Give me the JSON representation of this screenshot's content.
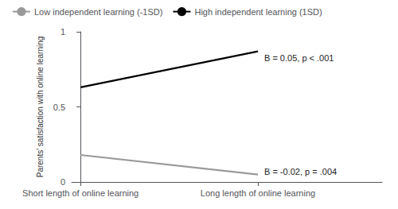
{
  "chart_data": {
    "type": "line",
    "x": [
      0,
      1
    ],
    "xlim": [
      -0.05,
      1.7
    ],
    "xticks": [
      {
        "value": 0,
        "label": "Short length of online learning"
      },
      {
        "value": 1,
        "label": "Long length of online learning"
      }
    ],
    "ylabel": "Parents' satisfaction with online learning",
    "ylim": [
      0,
      1
    ],
    "yticks": [
      0,
      0.5,
      1
    ],
    "grid": false,
    "legend": "upper left",
    "series": [
      {
        "name": "High independent learning (1SD)",
        "color": "#000000",
        "line_style": "solid",
        "values": [
          0.63,
          0.87
        ],
        "annotation": "B = 0.05, p < .001"
      },
      {
        "name": "Low independent learning (-1SD)",
        "color": "#999999",
        "line_style": "solid",
        "values": [
          0.18,
          0.05
        ],
        "annotation": "B = -0.02, p = .004"
      }
    ],
    "legend_order": [
      "Low independent learning (-1SD)",
      "High independent learning (1SD)"
    ]
  }
}
